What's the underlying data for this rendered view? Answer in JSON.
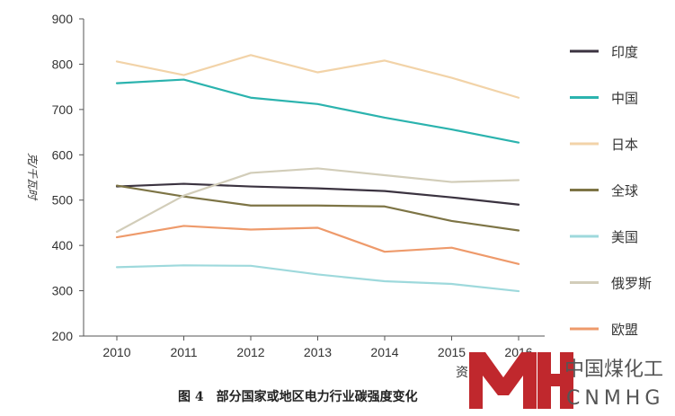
{
  "chart_data": {
    "type": "line",
    "title": "",
    "xlabel": "",
    "ylabel": "克/千瓦时",
    "x": [
      "2010",
      "2011",
      "2012",
      "2013",
      "2014",
      "2015",
      "2016"
    ],
    "ylim": [
      200,
      900
    ],
    "yticks": [
      200,
      300,
      400,
      500,
      600,
      700,
      800,
      900
    ],
    "grid": false,
    "legend_position": "right",
    "series": [
      {
        "name": "印度",
        "color": "#3b3340",
        "values": [
          530,
          536,
          530,
          526,
          520,
          506,
          490
        ]
      },
      {
        "name": "中国",
        "color": "#2bb3ae",
        "values": [
          758,
          766,
          726,
          712,
          682,
          656,
          627
        ]
      },
      {
        "name": "日本",
        "color": "#f2d3a8",
        "values": [
          806,
          776,
          820,
          782,
          808,
          770,
          726
        ]
      },
      {
        "name": "全球",
        "color": "#7d7445",
        "values": [
          532,
          508,
          488,
          488,
          486,
          454,
          433
        ]
      },
      {
        "name": "美国",
        "color": "#9ed9dc",
        "values": [
          352,
          356,
          355,
          336,
          321,
          315,
          299
        ]
      },
      {
        "name": "俄罗斯",
        "color": "#d2cdb9",
        "values": [
          430,
          510,
          560,
          570,
          555,
          540,
          544
        ]
      },
      {
        "name": "欧盟",
        "color": "#ee9a6b",
        "values": [
          418,
          443,
          435,
          439,
          386,
          395,
          359
        ]
      }
    ]
  },
  "caption": "图 4　部分国家或地区电力行业碳强度变化",
  "partial_source_label": "资",
  "watermark": {
    "cn": "中国煤化工",
    "en": "CNMHG",
    "color": "#c0282d"
  }
}
